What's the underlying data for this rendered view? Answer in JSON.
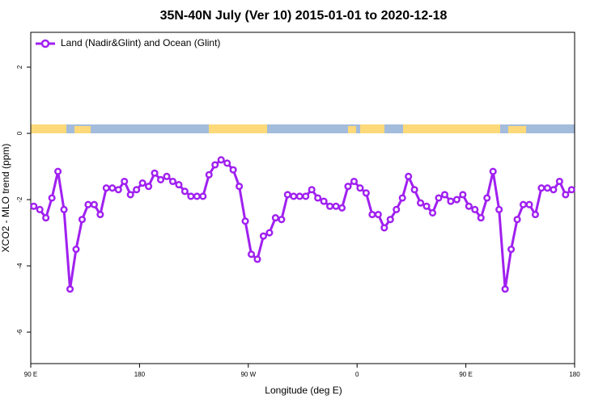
{
  "chart_data": {
    "type": "line",
    "title": "35N-40N July (Ver 10)   2015-01-01 to 2020-12-18",
    "xlabel": "Longitude (deg E)",
    "ylabel": "XCO2 - MLO trend (ppm)",
    "x": [
      92.5,
      97.5,
      102.5,
      107.5,
      112.5,
      117.5,
      122.5,
      127.5,
      132.5,
      137.5,
      142.5,
      147.5,
      152.5,
      157.5,
      162.5,
      167.5,
      172.5,
      177.5,
      182.5,
      187.5,
      192.5,
      197.5,
      202.5,
      207.5,
      212.5,
      217.5,
      222.5,
      227.5,
      232.5,
      237.5,
      242.5,
      247.5,
      252.5,
      257.5,
      262.5,
      267.5,
      272.5,
      277.5,
      282.5,
      287.5,
      292.5,
      297.5,
      302.5,
      307.5,
      312.5,
      317.5,
      322.5,
      327.5,
      332.5,
      337.5,
      342.5,
      347.5,
      352.5,
      357.5,
      362.5,
      367.5,
      372.5,
      377.5,
      382.5,
      387.5,
      392.5,
      397.5,
      402.5,
      407.5,
      412.5,
      417.5,
      422.5,
      427.5,
      432.5,
      437.5,
      442.5,
      447.5,
      452.5,
      457.5,
      462.5,
      467.5,
      472.5,
      477.5,
      482.5,
      487.5,
      492.5,
      497.5,
      502.5,
      507.5,
      512.5,
      517.5,
      522.5,
      527.5,
      532.5,
      537.5
    ],
    "series": [
      {
        "name": "Land (Nadir&Glint) and Ocean (Glint)",
        "color": "#a020f0",
        "values": [
          -2.2,
          -2.3,
          -2.55,
          -1.95,
          -1.15,
          -2.3,
          -4.7,
          -3.5,
          -2.6,
          -2.15,
          -2.15,
          -2.45,
          -1.65,
          -1.65,
          -1.7,
          -1.45,
          -1.85,
          -1.7,
          -1.5,
          -1.6,
          -1.2,
          -1.4,
          -1.3,
          -1.45,
          -1.55,
          -1.75,
          -1.9,
          -1.9,
          -1.9,
          -1.25,
          -0.95,
          -0.8,
          -0.9,
          -1.1,
          -1.6,
          -2.65,
          -3.65,
          -3.8,
          -3.1,
          -3.0,
          -2.55,
          -2.6,
          -1.85,
          -1.9,
          -1.9,
          -1.9,
          -1.7,
          -1.95,
          -2.05,
          -2.2,
          -2.2,
          -2.25,
          -1.6,
          -1.45,
          -1.65,
          -1.8,
          -2.45,
          -2.45,
          -2.85,
          -2.6,
          -2.3,
          -1.95,
          -1.3,
          -1.7,
          -2.1,
          -2.2,
          -2.4,
          -1.95,
          -1.85,
          -2.05,
          -2.0,
          -1.85,
          -2.2,
          -2.3,
          -2.55,
          -1.95,
          -1.15,
          -2.3,
          -4.7,
          -3.5,
          -2.6,
          -2.15,
          -2.15,
          -2.45,
          -1.65,
          -1.65,
          -1.7,
          -1.45,
          -1.85,
          -1.7
        ]
      }
    ],
    "xlim": [
      90,
      540
    ],
    "xticks": [
      {
        "value": 90,
        "label": "90 E"
      },
      180,
      {
        "value": 270,
        "label": "90 W"
      },
      {
        "value": 360,
        "label": "0"
      },
      {
        "value": 450,
        "label": "90 E"
      },
      {
        "value": 540,
        "label": "180"
      }
    ],
    "ylim": [
      -6.95,
      3.05
    ],
    "yticks": [
      2,
      0,
      -2,
      -4,
      -6
    ],
    "legend": "upper left"
  }
}
